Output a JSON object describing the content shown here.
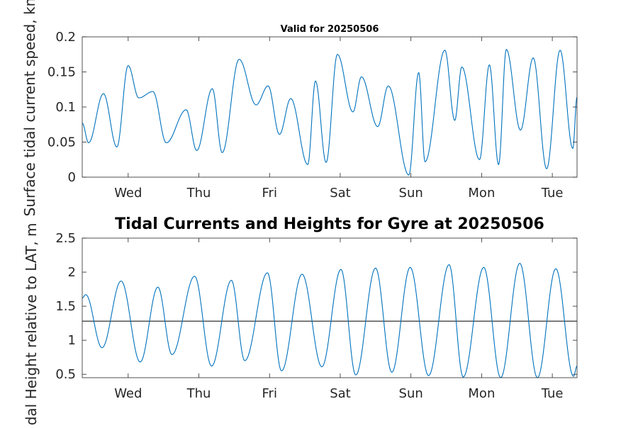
{
  "chart_data": [
    {
      "type": "line",
      "title": "Valid for 20250506",
      "ylabel": "Surface tidal current speed, kn",
      "ylim": [
        0,
        0.2
      ],
      "yticks": [
        0,
        0.05,
        0.1,
        0.15,
        0.2
      ],
      "ytick_labels": [
        "0",
        "0.05",
        "0.1",
        "0.15",
        "0.2"
      ],
      "xtick_labels": [
        "Wed",
        "Thu",
        "Fri",
        "Sat",
        "Sun",
        "Mon",
        "Tue"
      ],
      "xlim_days": [
        -0.65,
        6.35
      ],
      "grid": false,
      "line_color": "#0072BD",
      "series": [
        {
          "x": [
            -0.65,
            -0.56,
            -0.35,
            -0.16,
            0.0,
            0.15,
            0.35,
            0.54,
            0.82,
            0.97,
            1.19,
            1.33,
            1.57,
            1.81,
            1.98,
            2.14,
            2.3,
            2.54,
            2.65,
            2.8,
            2.96,
            3.18,
            3.3,
            3.53,
            3.68,
            3.97,
            4.11,
            4.2,
            4.48,
            4.62,
            4.72,
            4.97,
            5.11,
            5.24,
            5.35,
            5.55,
            5.73,
            5.92,
            6.11,
            6.29,
            6.35
          ],
          "values": [
            0.077,
            0.049,
            0.119,
            0.043,
            0.159,
            0.113,
            0.122,
            0.049,
            0.096,
            0.038,
            0.126,
            0.035,
            0.168,
            0.103,
            0.13,
            0.061,
            0.112,
            0.018,
            0.137,
            0.021,
            0.175,
            0.093,
            0.143,
            0.072,
            0.13,
            0.003,
            0.149,
            0.022,
            0.181,
            0.081,
            0.157,
            0.025,
            0.16,
            0.018,
            0.182,
            0.067,
            0.17,
            0.012,
            0.181,
            0.041,
            0.114
          ]
        }
      ]
    },
    {
      "type": "line",
      "title": "Tidal Currents and Heights for Gyre at 20250506",
      "ylabel": "Tidal Height relative to LAT, m",
      "ylim": [
        0.45,
        2.5
      ],
      "yticks": [
        0.5,
        1,
        1.5,
        2,
        2.5
      ],
      "ytick_labels": [
        "0.5",
        "1",
        "1.5",
        "2",
        "2.5"
      ],
      "xtick_labels": [
        "Wed",
        "Thu",
        "Fri",
        "Sat",
        "Sun",
        "Mon",
        "Tue"
      ],
      "xlim_days": [
        -0.65,
        6.35
      ],
      "grid": false,
      "line_color": "#0072BD",
      "reference_line": 1.28,
      "reference_color": "#333333",
      "series": [
        {
          "x": [
            -0.65,
            -0.6,
            -0.37,
            -0.1,
            0.17,
            0.42,
            0.62,
            0.94,
            1.18,
            1.46,
            1.65,
            1.97,
            2.17,
            2.46,
            2.74,
            3.01,
            3.22,
            3.5,
            3.73,
            3.99,
            4.25,
            4.54,
            4.74,
            5.03,
            5.27,
            5.54,
            5.79,
            6.05,
            6.3,
            6.35
          ],
          "values": [
            1.62,
            1.67,
            0.89,
            1.87,
            0.68,
            1.78,
            0.79,
            1.94,
            0.62,
            1.88,
            0.7,
            1.99,
            0.55,
            1.97,
            0.61,
            2.04,
            0.49,
            2.06,
            0.53,
            2.07,
            0.48,
            2.11,
            0.46,
            2.07,
            0.45,
            2.13,
            0.45,
            2.05,
            0.47,
            0.62
          ]
        }
      ]
    }
  ]
}
